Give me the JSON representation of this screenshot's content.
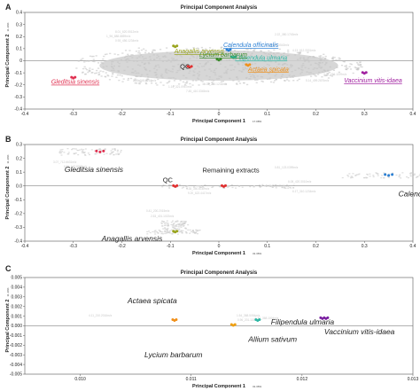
{
  "chart_data": [
    {
      "panel": "A",
      "type": "scatter",
      "title": "Principal Component Analysis",
      "xlabel": "Principal Component 1",
      "xlabel_suffix": "17.08%",
      "ylabel": "Principal Component 2",
      "ylabel_suffix": "11.10%",
      "xlim": [
        -0.4,
        0.4
      ],
      "ylim": [
        -0.4,
        0.4
      ],
      "xticks": [
        "-0.4",
        "-0.3",
        "-0.2",
        "-0.1",
        "0",
        "0.1",
        "0.2",
        "0.3",
        "0.4"
      ],
      "yticks": [
        "0.4",
        "0.3",
        "0.2",
        "0.1",
        "0",
        "-0.1",
        "-0.2",
        "-0.3",
        "-0.4"
      ],
      "cloud": {
        "x": [
          -0.3,
          0.3
        ],
        "y": [
          -0.2,
          0.12
        ],
        "color": "#d0d0d0"
      },
      "groups": [
        {
          "label": "Anagallis arvensis",
          "color": "#9aa51f",
          "x": -0.09,
          "y": 0.12
        },
        {
          "label": "Calendula officinalis",
          "color": "#2a7fd4",
          "x": 0.02,
          "y": 0.09
        },
        {
          "label": "Filipendula ulmaria",
          "color": "#2fb8a5",
          "x": 0.03,
          "y": 0.03
        },
        {
          "label": "Lycium barbarum",
          "color": "#3a8a2a",
          "x": 0.0,
          "y": 0.01
        },
        {
          "label": "QC",
          "color": "#e03030",
          "x": -0.06,
          "y": -0.05
        },
        {
          "label": "Actaea spicata",
          "color": "#f0901a",
          "x": 0.06,
          "y": -0.035
        },
        {
          "label": "Gleditsia sinensis",
          "color": "#e03050",
          "x": -0.3,
          "y": -0.14
        },
        {
          "label": "Vaccinium vitis-idaea",
          "color": "#a020a0",
          "x": 0.3,
          "y": -0.1
        }
      ],
      "ghost_labels": [
        "1_96_888.8859m/z",
        "0.93_456.1234m/z",
        "3.25_789.5543m/z",
        "4.13_612.3301m/z",
        "2.80_545.2210m/z",
        "1.14_321.0987m/z",
        "6.02_250.1234m/z",
        "7.45_410.3345m/z",
        "5.14_499.2876m/z",
        "3.66_701.1199m/z",
        "8.01_620.5512m/z",
        "2.22_380.1743m/z"
      ]
    },
    {
      "panel": "B",
      "type": "scatter",
      "title": "Principal Component Analysis",
      "xlabel": "Principal Component 1",
      "xlabel_suffix": "31.36%",
      "ylabel": "Principal Component 2",
      "ylabel_suffix": "11.10%",
      "xlim": [
        -0.4,
        0.4
      ],
      "ylim": [
        -0.4,
        0.3
      ],
      "xticks": [
        "-0.4",
        "-0.3",
        "-0.2",
        "-0.1",
        "0",
        "0.1",
        "0.2",
        "0.3",
        "0.4"
      ],
      "yticks": [
        "0.3",
        "0.2",
        "0.1",
        "0.0",
        "-0.1",
        "-0.2",
        "-0.3",
        "-0.4"
      ],
      "groups": [
        {
          "label": "Gleditsia sinensis",
          "color": "#e03050",
          "x": -0.245,
          "y": 0.25
        },
        {
          "label": "QC",
          "color": "#e03030",
          "x": -0.09,
          "y": 0.0
        },
        {
          "label": "Remaining extracts",
          "color": "#e03030",
          "x": 0.01,
          "y": 0.0
        },
        {
          "label": "Calendula officinalis",
          "color": "#2a7fd4",
          "x": 0.35,
          "y": 0.08
        },
        {
          "label": "Anagallis arvensis",
          "color": "#9aa51f",
          "x": -0.09,
          "y": -0.33
        }
      ],
      "ghost_labels": [
        "0.81_123.0399m/z",
        "6.08_420.3010m/z",
        "1.78_506.6015m/z",
        "6.17_310.1234m/z",
        "4.35_350.8112m/z",
        "9.20_622.4417m/z",
        "0.41_200.2015m/z",
        "2.53_401.1022m/z",
        "3.07_712.6631m/z",
        "8.85_140.8873m/z"
      ]
    },
    {
      "panel": "C",
      "type": "scatter",
      "title": "Principal Component Analysis",
      "xlabel": "Principal Component 1",
      "xlabel_suffix": "31.36%",
      "ylabel": "Principal Component 2",
      "ylabel_suffix": "11.10%",
      "xlim": [
        0.0095,
        0.013
      ],
      "ylim": [
        -0.005,
        0.005
      ],
      "xticks": [
        "0.010",
        "0.011",
        "0.012",
        "0.013"
      ],
      "yticks": [
        "0.005",
        "0.004",
        "0.003",
        "0.002",
        "0.001",
        "0.000",
        "-0.001",
        "-0.002",
        "-0.003",
        "-0.004",
        "-0.005"
      ],
      "groups": [
        {
          "label": "Actaea spicata",
          "color": "#f0901a",
          "x": 0.01085,
          "y": 0.0006
        },
        {
          "label": "Filipendula ulmaria",
          "color": "#2fb8a5",
          "x": 0.0116,
          "y": 0.0006
        },
        {
          "label": "Allium sativum",
          "color": "#f0a010",
          "x": 0.01138,
          "y": 0.0001
        },
        {
          "label": "Vaccinium vitis-idaea",
          "color": "#7a20a0",
          "x": 0.0122,
          "y": 0.0008
        },
        {
          "label": "Lycium barbarum",
          "color": "#3a8a2a",
          "x": null,
          "y": null
        }
      ],
      "ghost_labels": [
        "1.54_368.5054m/z",
        "0.96_201.1157m/z",
        "1.42_368.1004m/z",
        "4.11_210.2016m/z"
      ]
    }
  ]
}
